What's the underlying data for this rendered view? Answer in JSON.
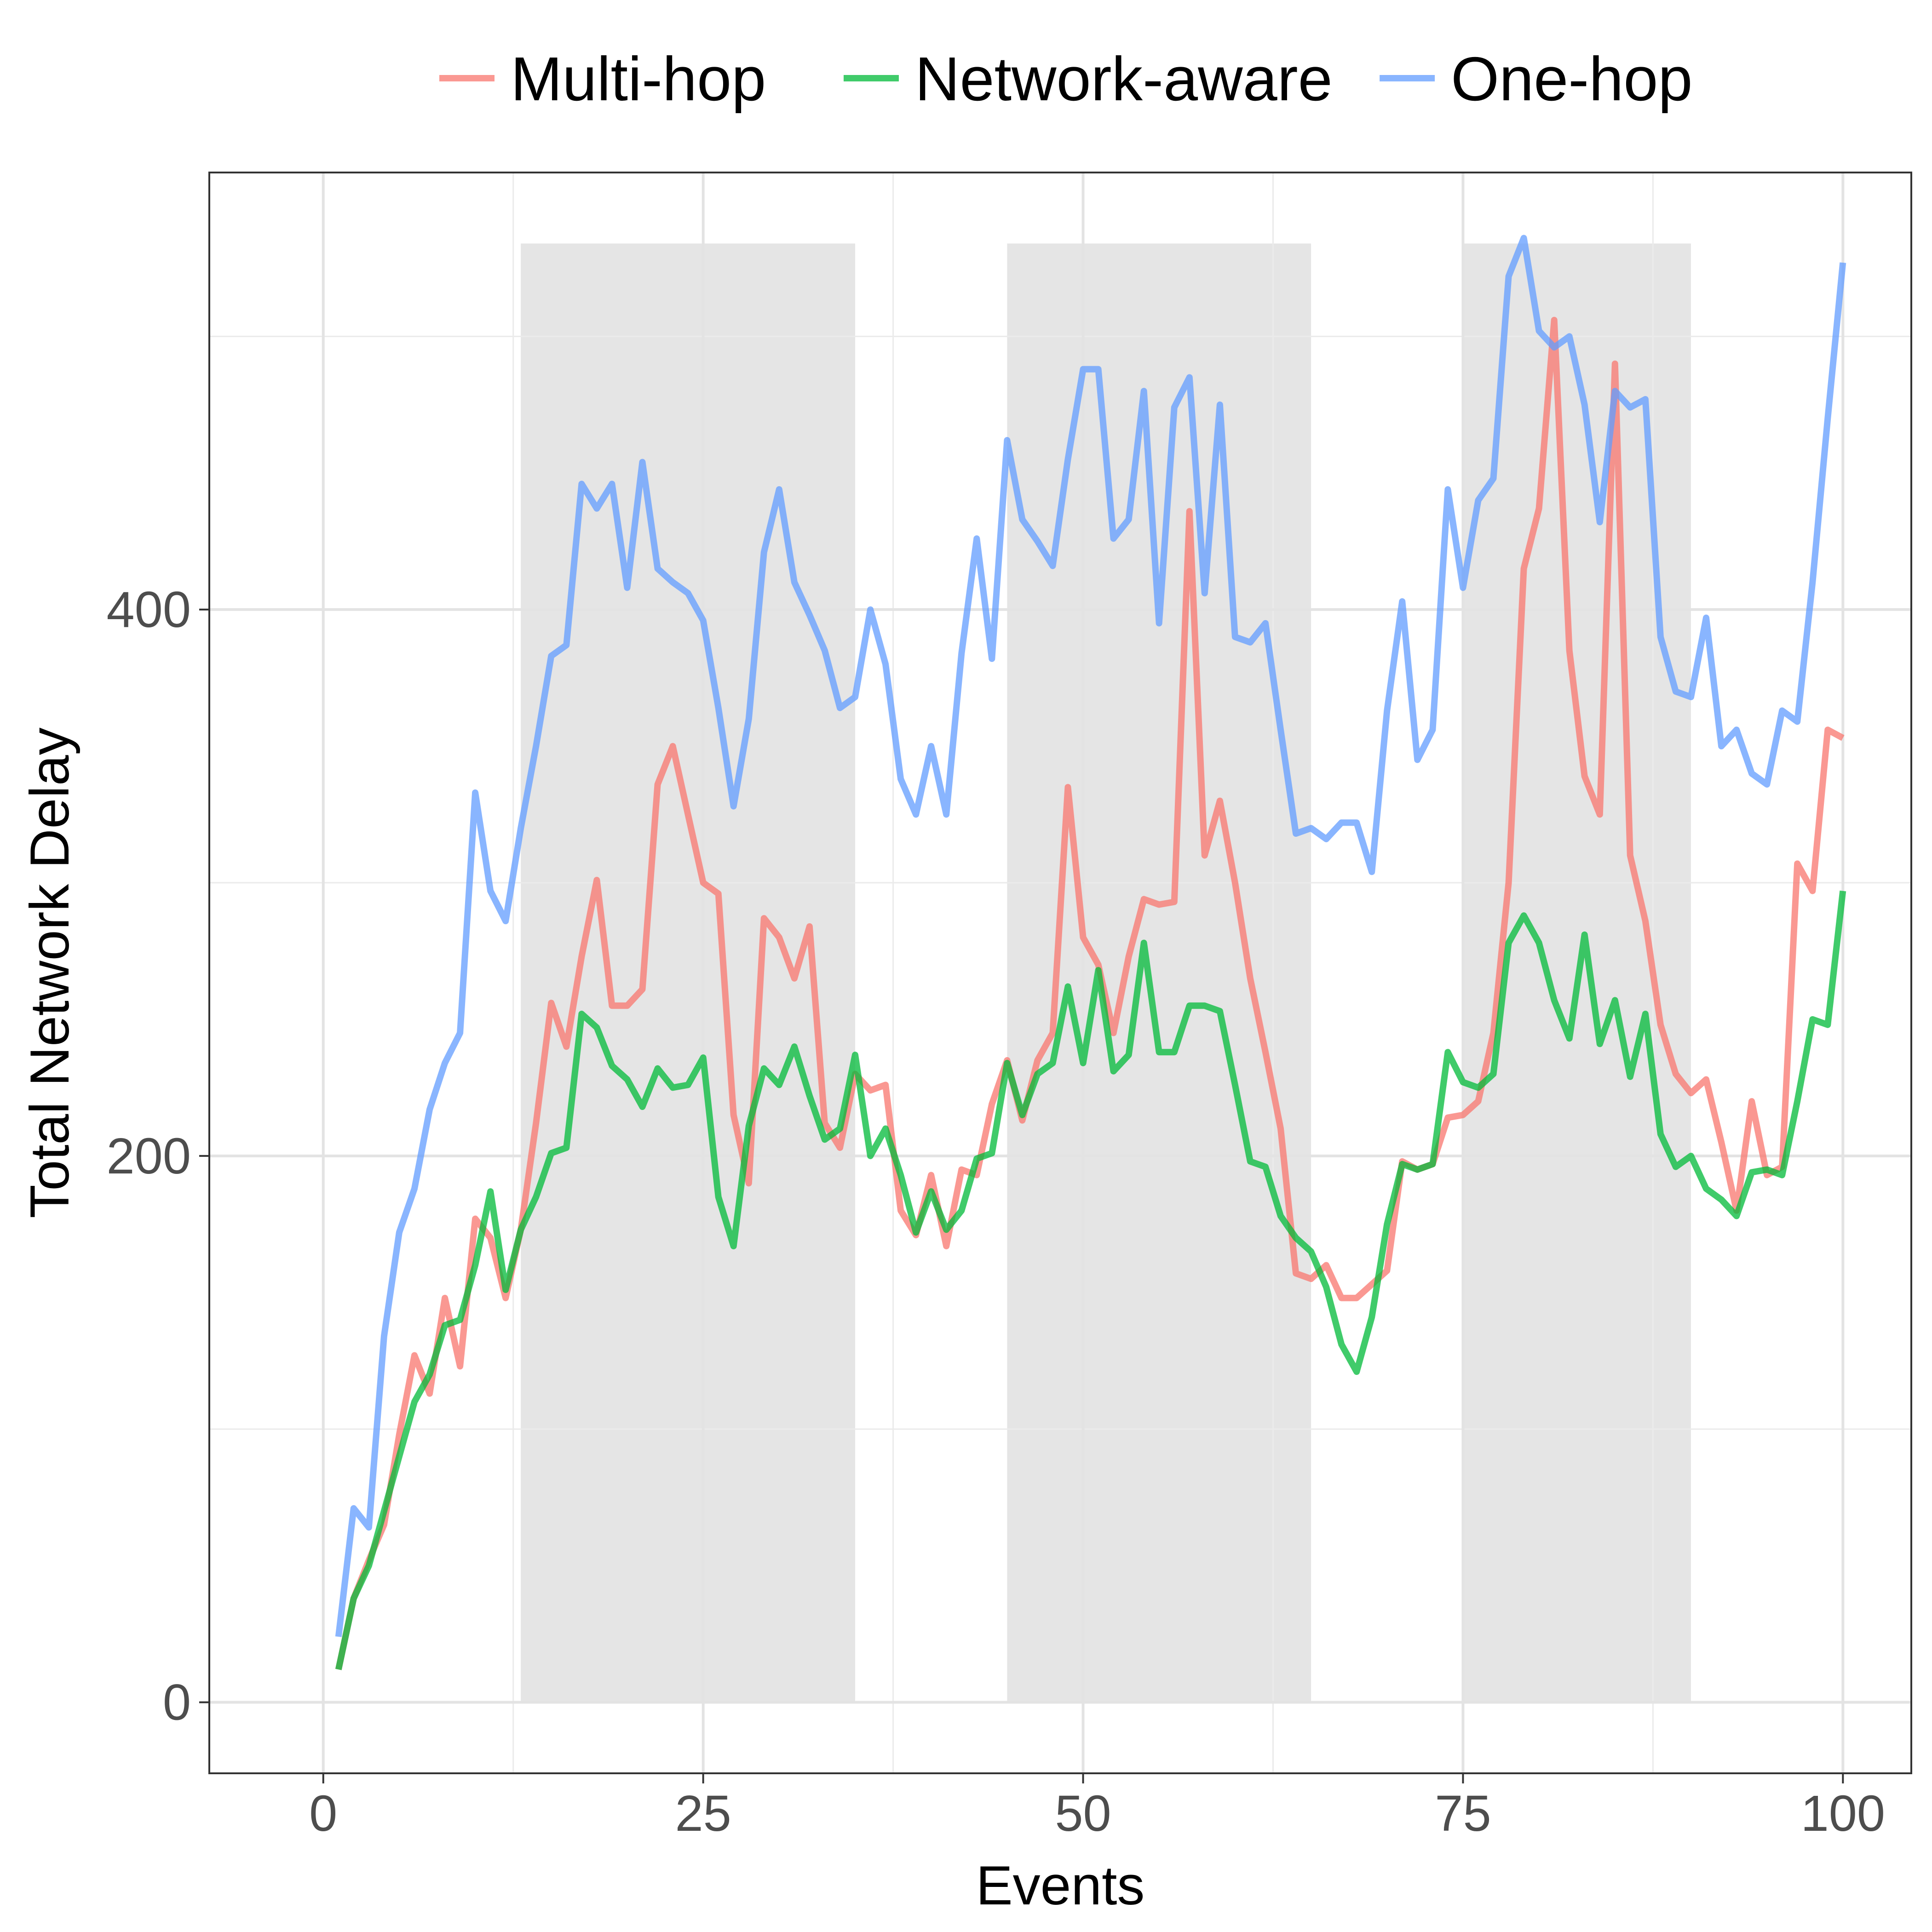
{
  "chart_data": {
    "type": "line",
    "xlabel": "Events",
    "ylabel": "Total Network Delay",
    "xlim": [
      -7.5,
      104.5
    ],
    "ylim": [
      -26,
      560
    ],
    "xticks": [
      0,
      25,
      50,
      75,
      100
    ],
    "yticks": [
      0,
      200,
      400
    ],
    "y_minor_gridlines": [
      100,
      300,
      500
    ],
    "x_minor_gridlines": [
      12.5,
      37.5,
      62.5,
      87.5
    ],
    "grid": true,
    "legend_position": "top",
    "shaded_regions": [
      {
        "x_start": 13,
        "x_end": 35,
        "y_top": 534
      },
      {
        "x_start": 45,
        "x_end": 65,
        "y_top": 534
      },
      {
        "x_start": 75,
        "x_end": 90,
        "y_top": 534
      }
    ],
    "series": [
      {
        "name": "Multi-hop",
        "color": "#F8766D",
        "x_start": 1,
        "values": [
          12,
          38,
          52,
          65,
          98,
          127,
          113,
          148,
          123,
          177,
          170,
          148,
          173,
          212,
          256,
          240,
          273,
          301,
          255,
          255,
          261,
          336,
          350,
          325,
          300,
          296,
          215,
          190,
          287,
          280,
          265,
          284,
          212,
          203,
          230,
          224,
          226,
          180,
          171,
          193,
          167,
          195,
          193,
          219,
          235,
          213,
          235,
          245,
          335,
          280,
          270,
          245,
          273,
          294,
          292,
          293,
          436,
          310,
          330,
          300,
          265,
          238,
          210,
          157,
          155,
          160,
          148,
          148,
          153,
          158,
          198,
          195,
          197,
          214,
          215,
          220,
          245,
          300,
          415,
          437,
          506,
          385,
          339,
          325,
          490,
          310,
          286,
          248,
          230,
          223,
          228,
          205,
          180,
          220,
          193,
          196,
          307,
          297,
          356,
          353
        ]
      },
      {
        "name": "Network-aware",
        "color": "#00BA38",
        "x_start": 1,
        "values": [
          12,
          38,
          50,
          70,
          90,
          110,
          120,
          138,
          140,
          160,
          187,
          151,
          173,
          185,
          201,
          203,
          252,
          247,
          233,
          228,
          218,
          232,
          225,
          226,
          236,
          185,
          167,
          211,
          232,
          226,
          240,
          222,
          206,
          210,
          237,
          200,
          210,
          193,
          172,
          187,
          173,
          180,
          199,
          201,
          234,
          215,
          230,
          234,
          262,
          234,
          268,
          231,
          237,
          278,
          238,
          238,
          255,
          255,
          253,
          226,
          198,
          196,
          178,
          170,
          165,
          152,
          131,
          121,
          141,
          175,
          197,
          195,
          197,
          238,
          227,
          225,
          230,
          278,
          288,
          278,
          257,
          243,
          281,
          241,
          257,
          229,
          252,
          208,
          196,
          200,
          188,
          184,
          178,
          194,
          195,
          193,
          220,
          250,
          248,
          297
        ]
      },
      {
        "name": "One-hop",
        "color": "#619CFF",
        "x_start": 1,
        "values": [
          24,
          71,
          64,
          134,
          172,
          188,
          217,
          234,
          245,
          333,
          297,
          286,
          320,
          350,
          383,
          387,
          446,
          437,
          446,
          408,
          454,
          415,
          410,
          406,
          396,
          364,
          328,
          360,
          421,
          444,
          410,
          398,
          385,
          364,
          368,
          400,
          380,
          338,
          325,
          350,
          325,
          384,
          426,
          382,
          462,
          433,
          425,
          416,
          455,
          488,
          488,
          426,
          433,
          480,
          395,
          474,
          485,
          406,
          475,
          390,
          388,
          395,
          356,
          318,
          320,
          316,
          322,
          322,
          304,
          363,
          403,
          345,
          356,
          444,
          408,
          440,
          448,
          522,
          536,
          502,
          496,
          500,
          475,
          432,
          480,
          474,
          477,
          390,
          370,
          368,
          397,
          350,
          356,
          340,
          336,
          363,
          359,
          410,
          470,
          527
        ]
      }
    ]
  }
}
